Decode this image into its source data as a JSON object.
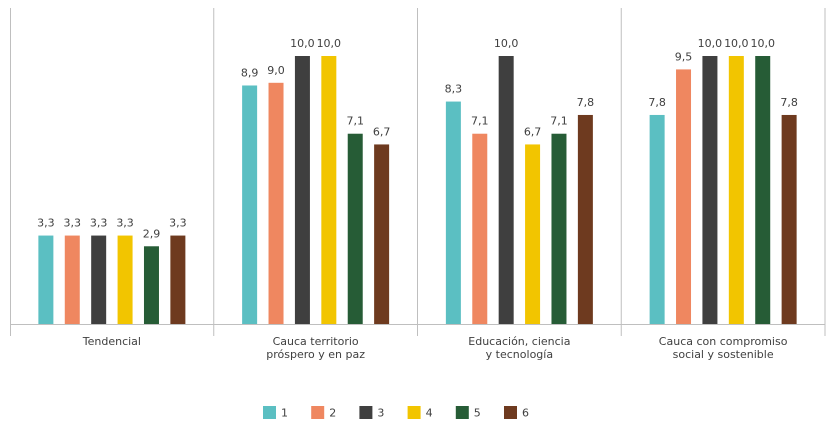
{
  "chart_data": {
    "type": "bar",
    "categories": [
      [
        "Tendencial"
      ],
      [
        "Cauca territorio",
        "próspero y en paz"
      ],
      [
        "Educación, ciencia",
        "y tecnología"
      ],
      [
        "Cauca con compromiso",
        "social y sostenible"
      ]
    ],
    "series": [
      {
        "name": "1",
        "color": "#5bbfc2",
        "values": [
          3.3,
          8.9,
          8.3,
          7.8
        ],
        "labels": [
          "3,3",
          "8,9",
          "8,3",
          "7,8"
        ]
      },
      {
        "name": "2",
        "color": "#ef8760",
        "values": [
          3.3,
          9.0,
          7.1,
          9.5
        ],
        "labels": [
          "3,3",
          "9,0",
          "7,1",
          "9,5"
        ]
      },
      {
        "name": "3",
        "color": "#3f3f3f",
        "values": [
          3.3,
          10.0,
          10.0,
          10.0
        ],
        "labels": [
          "3,3",
          "10,0",
          "10,0",
          "10,0"
        ]
      },
      {
        "name": "4",
        "color": "#f2c500",
        "values": [
          3.3,
          10.0,
          6.7,
          10.0
        ],
        "labels": [
          "3,3",
          "10,0",
          "6,7",
          "10,0"
        ]
      },
      {
        "name": "5",
        "color": "#265c36",
        "values": [
          2.9,
          7.1,
          7.1,
          10.0
        ],
        "labels": [
          "2,9",
          "7,1",
          "7,1",
          "10,0"
        ]
      },
      {
        "name": "6",
        "color": "#6e3a1f",
        "values": [
          3.3,
          6.7,
          7.8,
          7.8
        ],
        "labels": [
          "3,3",
          "6,7",
          "7,8",
          "7,8"
        ]
      }
    ],
    "ylim": [
      0,
      12
    ],
    "grid": false,
    "legend_position": "bottom-center",
    "axis_color": "#bfbfbf"
  }
}
